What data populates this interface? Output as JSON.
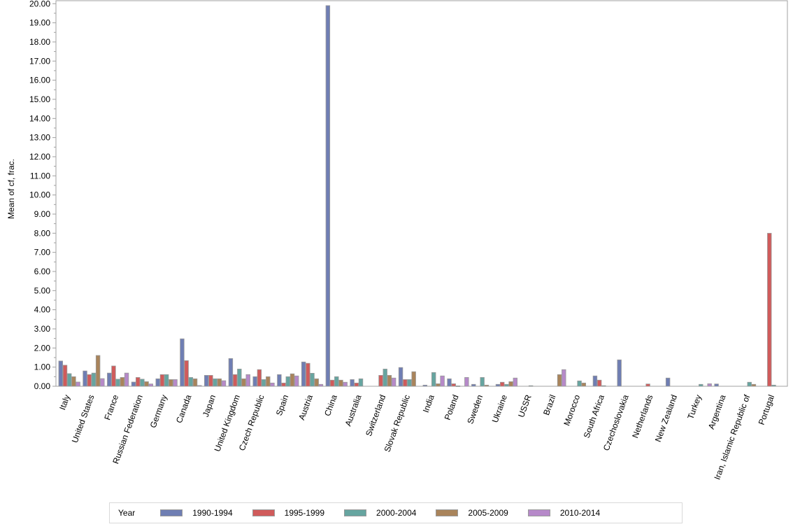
{
  "chart_data": {
    "type": "bar",
    "title": "",
    "xlabel": "",
    "ylabel": "Mean of cf, frac.",
    "ylim": [
      0,
      20
    ],
    "yticks": [
      "0.00",
      "1.00",
      "2.00",
      "3.00",
      "4.00",
      "5.00",
      "6.00",
      "7.00",
      "8.00",
      "9.00",
      "10.00",
      "11.00",
      "12.00",
      "13.00",
      "14.00",
      "15.00",
      "16.00",
      "17.00",
      "18.00",
      "19.00",
      "20.00"
    ],
    "grid": false,
    "legend_position": "bottom",
    "legend_title": "Year",
    "categories": [
      "Italy",
      "United States",
      "France",
      "Russian Federation",
      "Germany",
      "Canada",
      "Japan",
      "United Kingdom",
      "Czech Republic",
      "Spain",
      "Austria",
      "China",
      "Australia",
      "Switzerland",
      "Slovak Republic",
      "India",
      "Poland",
      "Sweden",
      "Ukraine",
      "USSR",
      "Brazil",
      "Morocco",
      "South Africa",
      "Czechoslovakia",
      "Netherlands",
      "New Zealand",
      "Turkey",
      "Argentina",
      "Iran, Islamic Republic of",
      "Portugal"
    ],
    "series": [
      {
        "name": "1990-1994",
        "color": "#6f7eb3",
        "values": [
          1.32,
          0.8,
          0.69,
          0.22,
          0.39,
          2.48,
          0.57,
          1.45,
          0.5,
          0.61,
          1.27,
          19.9,
          0.35,
          0,
          0.98,
          0.06,
          0.39,
          0.1,
          0.1,
          0,
          0,
          0,
          0.54,
          1.38,
          0,
          0.43,
          0,
          0.12,
          0,
          0
        ]
      },
      {
        "name": "1995-1999",
        "color": "#d05b5b",
        "values": [
          1.1,
          0.61,
          1.06,
          0.46,
          0.61,
          1.34,
          0.57,
          0.61,
          0.87,
          0.17,
          1.2,
          0.32,
          0.17,
          0.57,
          0.35,
          0,
          0.13,
          0,
          0.21,
          0,
          0,
          0,
          0.32,
          0,
          0.12,
          0,
          0,
          0,
          0,
          8.0
        ]
      },
      {
        "name": "2000-2004",
        "color": "#66a5a0",
        "values": [
          0.66,
          0.69,
          0.37,
          0.37,
          0.61,
          0.46,
          0.39,
          0.9,
          0.35,
          0.5,
          0.68,
          0.5,
          0.39,
          0.9,
          0.35,
          0.72,
          0.02,
          0.46,
          0.1,
          0.03,
          0,
          0.28,
          0.03,
          0,
          0,
          0,
          0.1,
          0,
          0.21,
          0.06
        ]
      },
      {
        "name": "2005-2009",
        "color": "#a9845b",
        "values": [
          0.5,
          1.61,
          0.46,
          0.24,
          0.35,
          0.39,
          0.39,
          0.39,
          0.5,
          0.65,
          0.39,
          0.32,
          0,
          0.57,
          0.76,
          0.13,
          0,
          0.06,
          0.24,
          0,
          0.61,
          0.17,
          0,
          0,
          0,
          0,
          0,
          0,
          0.1,
          0
        ]
      },
      {
        "name": "2010-2014",
        "color": "#b689c9",
        "values": [
          0.22,
          0.4,
          0.69,
          0.12,
          0.35,
          0.04,
          0.29,
          0.61,
          0.17,
          0.54,
          0.1,
          0.21,
          0,
          0.43,
          0,
          0.54,
          0.46,
          0,
          0.43,
          0,
          0.87,
          0,
          0,
          0,
          0,
          0,
          0.13,
          0,
          0,
          0
        ]
      }
    ]
  }
}
